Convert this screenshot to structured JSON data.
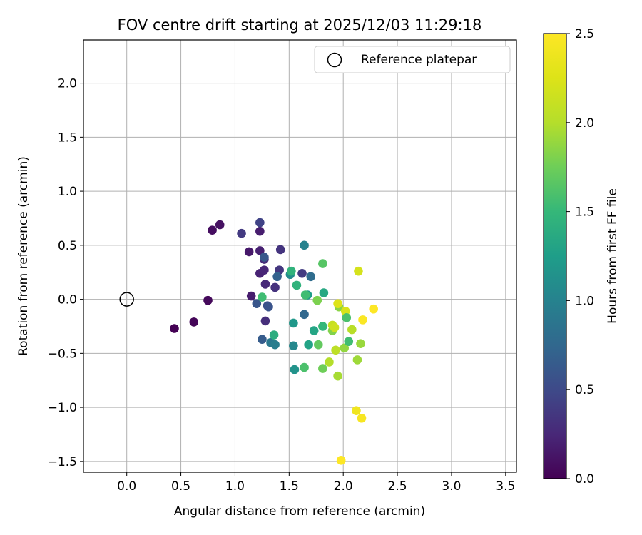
{
  "chart_data": {
    "type": "scatter",
    "title": "FOV centre drift starting at 2025/12/03 11:29:18",
    "xlabel": "Angular distance from reference (arcmin)",
    "ylabel": "Rotation from reference (arcmin)",
    "xlim": [
      -0.4,
      3.6
    ],
    "ylim": [
      -1.6,
      2.4
    ],
    "xticks": [
      0.0,
      0.5,
      1.0,
      1.5,
      2.0,
      2.5,
      3.0,
      3.5
    ],
    "xtick_labels": [
      "0.0",
      "0.5",
      "1.0",
      "1.5",
      "2.0",
      "2.5",
      "3.0",
      "3.5"
    ],
    "yticks": [
      -1.5,
      -1.0,
      -0.5,
      0.0,
      0.5,
      1.0,
      1.5,
      2.0
    ],
    "ytick_labels": [
      "−1.5",
      "−1.0",
      "−0.5",
      "0.0",
      "0.5",
      "1.0",
      "1.5",
      "2.0"
    ],
    "grid": true,
    "legend": {
      "position": "top-right",
      "entries": [
        {
          "label": "Reference platepar",
          "marker": "open-circle"
        }
      ]
    },
    "reference_point": {
      "x": 0.0,
      "y": 0.0,
      "label": "Reference platepar"
    },
    "colorbar": {
      "label": "Hours from first FF file",
      "range": [
        0.0,
        2.5
      ],
      "ticks": [
        0.0,
        0.5,
        1.0,
        1.5,
        2.0,
        2.5
      ],
      "tick_labels": [
        "0.0",
        "0.5",
        "1.0",
        "1.5",
        "2.0",
        "2.5"
      ],
      "colormap": "viridis"
    },
    "points": [
      {
        "x": 0.44,
        "y": -0.27,
        "c": 0.0
      },
      {
        "x": 0.62,
        "y": -0.21,
        "c": 0.03
      },
      {
        "x": 0.75,
        "y": -0.01,
        "c": 0.05
      },
      {
        "x": 0.79,
        "y": 0.64,
        "c": 0.08
      },
      {
        "x": 0.86,
        "y": 0.69,
        "c": 0.1
      },
      {
        "x": 1.13,
        "y": 0.44,
        "c": 0.15
      },
      {
        "x": 1.15,
        "y": 0.03,
        "c": 0.18
      },
      {
        "x": 1.23,
        "y": 0.63,
        "c": 0.18
      },
      {
        "x": 1.23,
        "y": 0.45,
        "c": 0.2
      },
      {
        "x": 1.23,
        "y": 0.24,
        "c": 0.22
      },
      {
        "x": 1.27,
        "y": 0.27,
        "c": 0.24
      },
      {
        "x": 1.28,
        "y": 0.14,
        "c": 0.26
      },
      {
        "x": 1.27,
        "y": 0.37,
        "c": 0.28
      },
      {
        "x": 1.28,
        "y": -0.2,
        "c": 0.3
      },
      {
        "x": 1.37,
        "y": 0.11,
        "c": 0.32
      },
      {
        "x": 1.42,
        "y": 0.46,
        "c": 0.34
      },
      {
        "x": 1.41,
        "y": 0.27,
        "c": 0.36
      },
      {
        "x": 1.06,
        "y": 0.61,
        "c": 0.38
      },
      {
        "x": 1.23,
        "y": 0.71,
        "c": 0.45
      },
      {
        "x": 1.62,
        "y": 0.24,
        "c": 0.4
      },
      {
        "x": 1.3,
        "y": -0.06,
        "c": 0.55
      },
      {
        "x": 1.31,
        "y": -0.07,
        "c": 0.58
      },
      {
        "x": 1.2,
        "y": -0.04,
        "c": 0.6
      },
      {
        "x": 1.27,
        "y": 0.39,
        "c": 0.62
      },
      {
        "x": 1.25,
        "y": -0.37,
        "c": 0.65
      },
      {
        "x": 1.39,
        "y": 0.21,
        "c": 0.7
      },
      {
        "x": 1.64,
        "y": -0.14,
        "c": 0.75
      },
      {
        "x": 1.7,
        "y": 0.21,
        "c": 0.8
      },
      {
        "x": 1.33,
        "y": -0.4,
        "c": 0.9
      },
      {
        "x": 1.37,
        "y": -0.42,
        "c": 0.95
      },
      {
        "x": 1.64,
        "y": 0.5,
        "c": 1.0
      },
      {
        "x": 1.54,
        "y": -0.43,
        "c": 1.05
      },
      {
        "x": 1.51,
        "y": 0.23,
        "c": 1.1
      },
      {
        "x": 1.55,
        "y": -0.65,
        "c": 1.15
      },
      {
        "x": 1.54,
        "y": -0.22,
        "c": 1.2
      },
      {
        "x": 1.67,
        "y": 0.04,
        "c": 1.25
      },
      {
        "x": 1.68,
        "y": -0.42,
        "c": 1.3
      },
      {
        "x": 1.73,
        "y": -0.29,
        "c": 1.32
      },
      {
        "x": 1.82,
        "y": 0.06,
        "c": 1.35
      },
      {
        "x": 1.36,
        "y": -0.33,
        "c": 1.4
      },
      {
        "x": 1.52,
        "y": 0.26,
        "c": 1.45
      },
      {
        "x": 1.57,
        "y": 0.13,
        "c": 1.45
      },
      {
        "x": 1.81,
        "y": -0.25,
        "c": 1.5
      },
      {
        "x": 1.25,
        "y": 0.02,
        "c": 1.55
      },
      {
        "x": 1.65,
        "y": 0.04,
        "c": 1.55
      },
      {
        "x": 1.64,
        "y": -0.63,
        "c": 1.6
      },
      {
        "x": 1.81,
        "y": 0.33,
        "c": 1.65
      },
      {
        "x": 1.77,
        "y": -0.42,
        "c": 1.7
      },
      {
        "x": 1.81,
        "y": -0.64,
        "c": 1.75
      },
      {
        "x": 1.76,
        "y": -0.01,
        "c": 1.8
      },
      {
        "x": 1.9,
        "y": -0.29,
        "c": 1.82
      },
      {
        "x": 1.96,
        "y": -0.07,
        "c": 1.85
      },
      {
        "x": 2.01,
        "y": -0.45,
        "c": 1.88
      },
      {
        "x": 2.16,
        "y": -0.41,
        "c": 1.9
      },
      {
        "x": 2.13,
        "y": -0.56,
        "c": 1.92
      },
      {
        "x": 1.95,
        "y": -0.71,
        "c": 1.95
      },
      {
        "x": 1.87,
        "y": -0.58,
        "c": 2.0
      },
      {
        "x": 2.08,
        "y": -0.28,
        "c": 2.02
      },
      {
        "x": 1.93,
        "y": -0.47,
        "c": 2.05
      },
      {
        "x": 1.9,
        "y": -0.24,
        "c": 2.1
      },
      {
        "x": 1.92,
        "y": -0.26,
        "c": 2.15
      },
      {
        "x": 2.14,
        "y": 0.26,
        "c": 2.2
      },
      {
        "x": 2.02,
        "y": -0.11,
        "c": 2.22
      },
      {
        "x": 1.95,
        "y": -0.04,
        "c": 2.25
      },
      {
        "x": 2.12,
        "y": -1.03,
        "c": 2.4
      },
      {
        "x": 2.17,
        "y": -1.1,
        "c": 2.45
      },
      {
        "x": 2.18,
        "y": -0.19,
        "c": 2.48
      },
      {
        "x": 2.28,
        "y": -0.09,
        "c": 2.5
      },
      {
        "x": 1.98,
        "y": -1.49,
        "c": 2.5
      },
      {
        "x": 2.05,
        "y": -0.39,
        "c": 1.55
      },
      {
        "x": 2.03,
        "y": -0.17,
        "c": 1.6
      }
    ]
  }
}
